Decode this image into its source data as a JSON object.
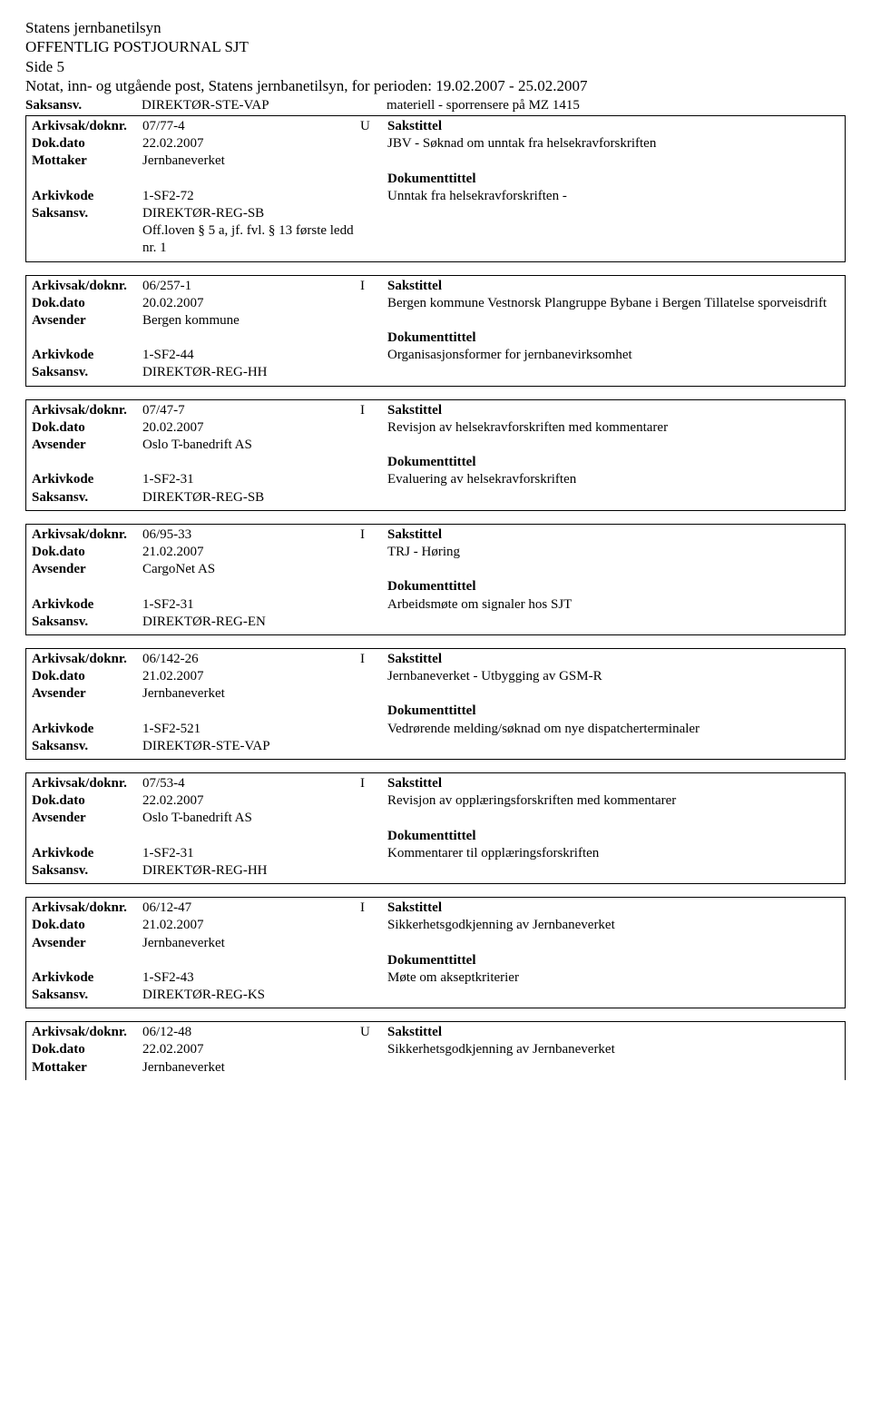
{
  "header": {
    "org": "Statens jernbanetilsyn",
    "title": "OFFENTLIG POSTJOURNAL SJT",
    "page": "Side 5",
    "subtitle": "Notat, inn- og utgående post, Statens jernbanetilsyn, for perioden: 19.02.2007 - 25.02.2007"
  },
  "trailing": {
    "left_label": "Saksansv.",
    "left_value": "DIREKTØR-STE-VAP",
    "right_value": "materiell - sporrensere på MZ 1415"
  },
  "labels": {
    "arkivsak": "Arkivsak/doknr.",
    "dokdato": "Dok.dato",
    "mottaker": "Mottaker",
    "avsender": "Avsender",
    "arkivkode": "Arkivkode",
    "saksansv": "Saksansv.",
    "sakstittel": "Sakstittel",
    "dokumenttittel": "Dokumenttittel"
  },
  "records": [
    {
      "arkivsak": "07/77-4",
      "dir": "U",
      "dokdato": "22.02.2007",
      "party_label": "Mottaker",
      "party": "Jernbaneverket",
      "arkivkode": "1-SF2-72",
      "saksansv": "DIREKTØR-REG-SB",
      "saksansv_extra": "Off.loven § 5 a, jf. fvl. § 13 første ledd nr. 1",
      "sakstittel": "JBV - Søknad om unntak fra helsekravforskriften",
      "doktittel": "Unntak fra helsekravforskriften -"
    },
    {
      "arkivsak": "06/257-1",
      "dir": "I",
      "dokdato": "20.02.2007",
      "party_label": "Avsender",
      "party": "Bergen kommune",
      "arkivkode": "1-SF2-44",
      "saksansv": "DIREKTØR-REG-HH",
      "sakstittel": "Bergen kommune Vestnorsk Plangruppe Bybane i Bergen Tillatelse sporveisdrift",
      "doktittel": "Organisasjonsformer for jernbanevirksomhet"
    },
    {
      "arkivsak": "07/47-7",
      "dir": "I",
      "dokdato": "20.02.2007",
      "party_label": "Avsender",
      "party": "Oslo T-banedrift AS",
      "arkivkode": "1-SF2-31",
      "saksansv": "DIREKTØR-REG-SB",
      "sakstittel": "Revisjon av helsekravforskriften med kommentarer",
      "doktittel": "Evaluering av helsekravforskriften"
    },
    {
      "arkivsak": "06/95-33",
      "dir": "I",
      "dokdato": "21.02.2007",
      "party_label": "Avsender",
      "party": "CargoNet AS",
      "arkivkode": "1-SF2-31",
      "saksansv": "DIREKTØR-REG-EN",
      "sakstittel": "TRJ - Høring",
      "doktittel": "Arbeidsmøte om signaler hos SJT"
    },
    {
      "arkivsak": "06/142-26",
      "dir": "I",
      "dokdato": "21.02.2007",
      "party_label": "Avsender",
      "party": "Jernbaneverket",
      "arkivkode": "1-SF2-521",
      "saksansv": "DIREKTØR-STE-VAP",
      "sakstittel": "Jernbaneverket - Utbygging av GSM-R",
      "doktittel": "Vedrørende melding/søknad om nye dispatcherterminaler"
    },
    {
      "arkivsak": "07/53-4",
      "dir": "I",
      "dokdato": "22.02.2007",
      "party_label": "Avsender",
      "party": "Oslo T-banedrift AS",
      "arkivkode": "1-SF2-31",
      "saksansv": "DIREKTØR-REG-HH",
      "sakstittel": "Revisjon av opplæringsforskriften med kommentarer",
      "doktittel": "Kommentarer til opplæringsforskriften"
    },
    {
      "arkivsak": "06/12-47",
      "dir": "I",
      "dokdato": "21.02.2007",
      "party_label": "Avsender",
      "party": "Jernbaneverket",
      "arkivkode": "1-SF2-43",
      "saksansv": "DIREKTØR-REG-KS",
      "sakstittel": "Sikkerhetsgodkjenning av Jernbaneverket",
      "doktittel": "Møte om akseptkriterier"
    },
    {
      "arkivsak": "06/12-48",
      "dir": "U",
      "dokdato": "22.02.2007",
      "party_label": "Mottaker",
      "party": "Jernbaneverket",
      "sakstittel": "Sikkerhetsgodkjenning av Jernbaneverket",
      "partial": true
    }
  ]
}
